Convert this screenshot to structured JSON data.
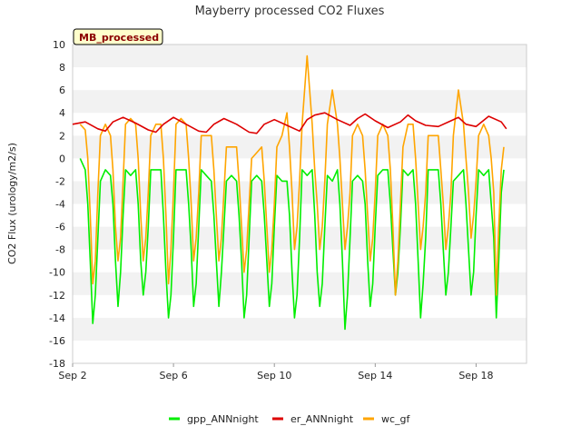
{
  "chart_data": {
    "type": "line",
    "title": "Mayberry processed CO2 Fluxes",
    "ylabel": "CO2 Flux (urology/m2/s)",
    "xlabel": "",
    "badge": "MB_processed",
    "ylim": [
      -18,
      10
    ],
    "yticks": [
      10,
      8,
      6,
      4,
      2,
      0,
      -2,
      -4,
      -6,
      -8,
      -10,
      -12,
      -14,
      -16,
      -18
    ],
    "xlim_days": [
      2,
      20
    ],
    "xticks": [
      {
        "day": 2,
        "label": "Sep 2"
      },
      {
        "day": 6,
        "label": "Sep 6"
      },
      {
        "day": 10,
        "label": "Sep 10"
      },
      {
        "day": 14,
        "label": "Sep 14"
      },
      {
        "day": 18,
        "label": "Sep 18"
      }
    ],
    "grid": "horizontal alternating bands",
    "legend_position": "bottom",
    "series": [
      {
        "name": "gpp_ANNnight",
        "color": "#00ee00",
        "x": [
          2.3,
          2.5,
          2.6,
          2.7,
          2.8,
          2.9,
          3.0,
          3.1,
          3.3,
          3.5,
          3.6,
          3.7,
          3.8,
          3.9,
          4.0,
          4.1,
          4.3,
          4.5,
          4.6,
          4.7,
          4.8,
          4.9,
          5.0,
          5.1,
          5.3,
          5.5,
          5.6,
          5.7,
          5.8,
          5.9,
          6.0,
          6.1,
          6.3,
          6.5,
          6.6,
          6.7,
          6.8,
          6.9,
          7.0,
          7.1,
          7.3,
          7.5,
          7.6,
          7.7,
          7.8,
          7.9,
          8.0,
          8.1,
          8.3,
          8.5,
          8.6,
          8.7,
          8.8,
          8.9,
          9.0,
          9.1,
          9.3,
          9.5,
          9.6,
          9.7,
          9.8,
          9.9,
          10.0,
          10.1,
          10.3,
          10.5,
          10.6,
          10.7,
          10.8,
          10.9,
          11.0,
          11.1,
          11.3,
          11.5,
          11.6,
          11.7,
          11.8,
          11.9,
          12.0,
          12.1,
          12.3,
          12.5,
          12.6,
          12.7,
          12.8,
          12.9,
          13.0,
          13.1,
          13.3,
          13.5,
          13.6,
          13.7,
          13.8,
          13.9,
          14.0,
          14.1,
          14.3,
          14.5,
          14.6,
          14.7,
          14.8,
          14.9,
          15.0,
          15.1,
          15.3,
          15.5,
          15.6,
          15.7,
          15.8,
          15.9,
          16.0,
          16.1,
          16.3,
          16.5,
          16.6,
          16.7,
          16.8,
          16.9,
          17.0,
          17.1,
          17.3,
          17.5,
          17.6,
          17.7,
          17.8,
          17.9,
          18.0,
          18.1,
          18.3,
          18.5,
          18.6,
          18.7,
          18.8,
          18.9,
          19.0,
          19.1
        ],
        "values": [
          0,
          -1,
          -4,
          -9,
          -14.5,
          -12,
          -7,
          -2,
          -1,
          -1.5,
          -4,
          -9,
          -13,
          -10,
          -5,
          -1,
          -1.5,
          -1,
          -4,
          -9,
          -12,
          -10,
          -6,
          -1,
          -1,
          -1,
          -5,
          -10,
          -14,
          -12,
          -7,
          -1,
          -1,
          -1,
          -4,
          -8,
          -13,
          -11,
          -6,
          -1,
          -1.5,
          -2,
          -5,
          -9,
          -13,
          -10,
          -6,
          -2,
          -1.5,
          -2,
          -5,
          -9,
          -14,
          -12,
          -7,
          -2,
          -1.5,
          -2,
          -5,
          -9,
          -13,
          -11,
          -6,
          -1.5,
          -2,
          -2,
          -5,
          -10,
          -14,
          -12,
          -7,
          -1,
          -1.5,
          -1,
          -5,
          -10,
          -13,
          -11,
          -6,
          -1.5,
          -2,
          -1,
          -4,
          -9,
          -15,
          -12,
          -7,
          -2,
          -1.5,
          -2,
          -4,
          -9,
          -13,
          -11,
          -6,
          -1.5,
          -1,
          -1,
          -4,
          -8,
          -12,
          -10,
          -6,
          -1,
          -1.5,
          -1,
          -4,
          -9,
          -14,
          -11,
          -7,
          -1,
          -1,
          -1,
          -4,
          -8,
          -12,
          -10,
          -6,
          -2,
          -1.5,
          -1,
          -4,
          -8,
          -12,
          -10,
          -5,
          -1,
          -1.5,
          -1,
          -4,
          -7,
          -14,
          -9,
          -3,
          -1
        ]
      },
      {
        "name": "er_ANNnight",
        "color": "#dd0000",
        "x": [
          2.0,
          2.5,
          3.0,
          3.3,
          3.6,
          4.0,
          4.5,
          5.0,
          5.3,
          5.6,
          6.0,
          6.5,
          7.0,
          7.3,
          7.6,
          8.0,
          8.5,
          9.0,
          9.3,
          9.6,
          10.0,
          10.5,
          11.0,
          11.3,
          11.6,
          12.0,
          12.5,
          13.0,
          13.3,
          13.6,
          14.0,
          14.5,
          15.0,
          15.3,
          15.6,
          16.0,
          16.5,
          17.0,
          17.3,
          17.6,
          18.0,
          18.5,
          19.0,
          19.2
        ],
        "values": [
          3.0,
          3.2,
          2.6,
          2.4,
          3.2,
          3.6,
          3.1,
          2.5,
          2.3,
          3.0,
          3.6,
          3.0,
          2.4,
          2.3,
          3.0,
          3.5,
          3.0,
          2.3,
          2.2,
          3.0,
          3.4,
          2.9,
          2.4,
          3.4,
          3.8,
          4.0,
          3.4,
          2.9,
          3.5,
          3.9,
          3.3,
          2.7,
          3.2,
          3.8,
          3.3,
          2.9,
          2.8,
          3.3,
          3.6,
          3.0,
          2.8,
          3.7,
          3.2,
          2.6
        ]
      },
      {
        "name": "wc_gf",
        "color": "#ffa500",
        "x": [
          2.3,
          2.5,
          2.6,
          2.7,
          2.8,
          2.9,
          3.0,
          3.1,
          3.3,
          3.5,
          3.6,
          3.7,
          3.8,
          3.9,
          4.0,
          4.1,
          4.3,
          4.5,
          4.6,
          4.7,
          4.8,
          4.9,
          5.0,
          5.1,
          5.3,
          5.5,
          5.6,
          5.7,
          5.8,
          5.9,
          6.0,
          6.1,
          6.3,
          6.5,
          6.6,
          6.7,
          6.8,
          6.9,
          7.0,
          7.1,
          7.3,
          7.5,
          7.6,
          7.7,
          7.8,
          7.9,
          8.0,
          8.1,
          8.3,
          8.5,
          8.6,
          8.7,
          8.8,
          8.9,
          9.0,
          9.1,
          9.3,
          9.5,
          9.6,
          9.7,
          9.8,
          9.9,
          10.0,
          10.1,
          10.3,
          10.5,
          10.6,
          10.7,
          10.8,
          10.9,
          11.0,
          11.1,
          11.3,
          11.5,
          11.6,
          11.7,
          11.8,
          11.9,
          12.0,
          12.1,
          12.3,
          12.5,
          12.6,
          12.7,
          12.8,
          12.9,
          13.0,
          13.1,
          13.3,
          13.5,
          13.6,
          13.7,
          13.8,
          13.9,
          14.0,
          14.1,
          14.3,
          14.5,
          14.6,
          14.7,
          14.8,
          14.9,
          15.0,
          15.1,
          15.3,
          15.5,
          15.6,
          15.7,
          15.8,
          15.9,
          16.0,
          16.1,
          16.3,
          16.5,
          16.6,
          16.7,
          16.8,
          16.9,
          17.0,
          17.1,
          17.3,
          17.5,
          17.6,
          17.7,
          17.8,
          17.9,
          18.0,
          18.1,
          18.3,
          18.5,
          18.6,
          18.7,
          18.8,
          18.9,
          19.0,
          19.1
        ],
        "values": [
          3,
          2.5,
          0,
          -5,
          -11,
          -9,
          -3,
          2,
          3,
          2,
          -1,
          -6,
          -9,
          -7,
          -2,
          3,
          3.5,
          3,
          0,
          -5,
          -9,
          -7,
          -3,
          2,
          3,
          3,
          0,
          -5,
          -11,
          -8,
          -3,
          3,
          3.5,
          3,
          0,
          -4,
          -9,
          -7,
          -3,
          2,
          2,
          2,
          -1,
          -5,
          -9,
          -7,
          -3,
          1,
          1,
          1,
          -2,
          -6,
          -10,
          -8,
          -4,
          0,
          0.5,
          1,
          -2,
          -6,
          -10,
          -8,
          -4,
          1,
          2,
          4,
          1,
          -3,
          -8,
          -6,
          -2,
          3,
          9,
          3,
          -1,
          -4,
          -8,
          -6,
          -2,
          3,
          6,
          3,
          0,
          -4,
          -8,
          -6,
          -3,
          2,
          3,
          2,
          -1,
          -5,
          -9,
          -7,
          -3,
          2,
          3,
          2,
          -1,
          -6,
          -12,
          -9,
          -4,
          1,
          3,
          3,
          0,
          -4,
          -8,
          -6,
          -3,
          2,
          2,
          2,
          -1,
          -4,
          -8,
          -6,
          -3,
          2,
          6,
          3,
          0,
          -3,
          -7,
          -5,
          -2,
          2,
          3,
          2,
          0,
          -3,
          -12,
          -6,
          -1,
          1
        ]
      }
    ]
  }
}
